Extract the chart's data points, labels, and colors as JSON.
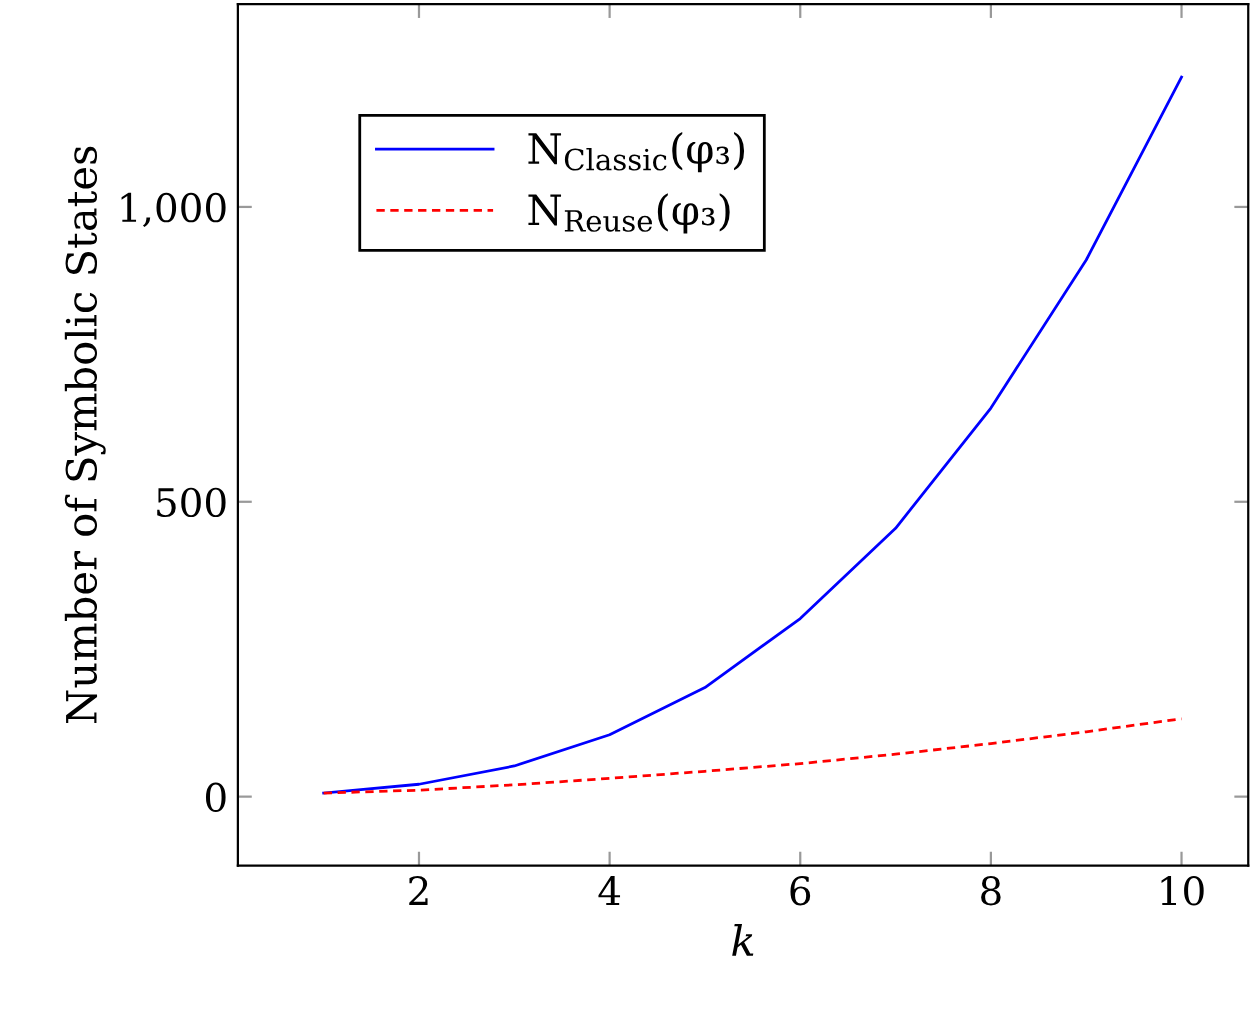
{
  "chart_data": {
    "type": "line",
    "xlabel": "k",
    "ylabel": "Number of Symbolic States",
    "x": [
      1,
      2,
      3,
      4,
      5,
      6,
      7,
      8,
      9,
      10
    ],
    "series": [
      {
        "name": "N$_{Classic}$(φ₃)",
        "color": "#0000ff",
        "line_style": "solid",
        "values": [
          6,
          21,
          52,
          105,
          185,
          302,
          455,
          659,
          910,
          1220
        ]
      },
      {
        "name": "N$_{Reuse}$(φ₃)",
        "color": "#ff0000",
        "line_style": "dashed",
        "values": [
          6,
          11,
          20,
          31,
          43,
          56,
          72,
          90,
          110,
          132
        ]
      }
    ],
    "xlim": [
      0.1,
      10.7
    ],
    "ylim": [
      -117,
      1344
    ],
    "xticks": [
      2,
      4,
      6,
      8,
      10
    ],
    "yticks": [
      0,
      500,
      {
        "value": 1000,
        "label": "1,000"
      }
    ],
    "grid": false,
    "legend": "top left",
    "marker": "none"
  }
}
